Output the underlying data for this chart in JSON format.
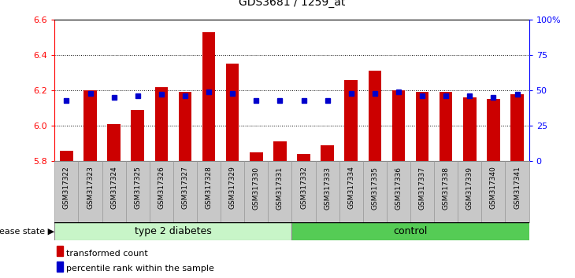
{
  "title": "GDS3681 / 1259_at",
  "samples": [
    "GSM317322",
    "GSM317323",
    "GSM317324",
    "GSM317325",
    "GSM317326",
    "GSM317327",
    "GSM317328",
    "GSM317329",
    "GSM317330",
    "GSM317331",
    "GSM317332",
    "GSM317333",
    "GSM317334",
    "GSM317335",
    "GSM317336",
    "GSM317337",
    "GSM317338",
    "GSM317339",
    "GSM317340",
    "GSM317341"
  ],
  "transformed_count": [
    5.86,
    6.2,
    6.01,
    6.09,
    6.22,
    6.19,
    6.53,
    6.35,
    5.85,
    5.91,
    5.84,
    5.89,
    6.26,
    6.31,
    6.2,
    6.19,
    6.19,
    6.16,
    6.15,
    6.18
  ],
  "percentile_rank": [
    43,
    48,
    45,
    46,
    47,
    46,
    49,
    48,
    43,
    43,
    43,
    43,
    48,
    48,
    49,
    46,
    46,
    46,
    45,
    47
  ],
  "ylim_left": [
    5.8,
    6.6
  ],
  "ylim_right": [
    0,
    100
  ],
  "yticks_left": [
    5.8,
    6.0,
    6.2,
    6.4,
    6.6
  ],
  "yticks_right": [
    0,
    25,
    50,
    75,
    100
  ],
  "ytick_right_labels": [
    "0",
    "25",
    "50",
    "75",
    "100%"
  ],
  "bar_color": "#cc0000",
  "dot_color": "#0000cc",
  "bar_bottom": 5.8,
  "type2_color_light": "#c8f5c8",
  "control_color": "#55cc55",
  "group_label": "disease state",
  "groups": [
    {
      "label": "type 2 diabetes",
      "start": 0,
      "end": 9
    },
    {
      "label": "control",
      "start": 10,
      "end": 19
    }
  ],
  "legend_items": [
    {
      "color": "#cc0000",
      "label": "transformed count"
    },
    {
      "color": "#0000cc",
      "label": "percentile rank within the sample"
    }
  ],
  "tick_bg_color": "#c8c8c8",
  "figsize": [
    7.3,
    3.54
  ],
  "dpi": 100
}
